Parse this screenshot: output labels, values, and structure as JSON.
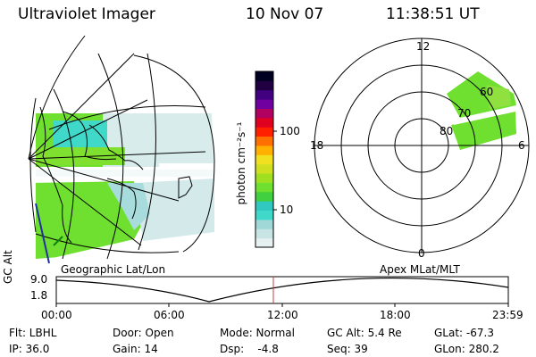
{
  "header": {
    "title": "Ultraviolet Imager",
    "date": "10 Nov 07",
    "time": "11:38:51 UT"
  },
  "colorbar": {
    "unit_label": "photon cm⁻²s⁻¹",
    "tick_100": "100",
    "tick_10": "10",
    "colors": [
      "#e6f2f2",
      "#c8e4e4",
      "#a0d8d8",
      "#40d8c8",
      "#30c8c0",
      "#40d040",
      "#70e030",
      "#a0e020",
      "#d0e020",
      "#f0e020",
      "#ffb000",
      "#ff7000",
      "#ff2000",
      "#e00020",
      "#b00060",
      "#7000a0",
      "#400080",
      "#200040",
      "#000020"
    ]
  },
  "polar": {
    "labels": {
      "top": "12",
      "left": "18",
      "right": "6",
      "bottom": "0"
    },
    "lat_labels": [
      "60",
      "70",
      "80"
    ]
  },
  "panel_labels": {
    "geo": "Geographic Lat/Lon",
    "apex": "Apex MLat/MLT"
  },
  "timeline": {
    "y_label": "GC Alt",
    "y_top": "9.0",
    "y_bottom": "1.8",
    "ticks": [
      "00:00",
      "06:00",
      "12:00",
      "18:00",
      "23:59"
    ]
  },
  "info": {
    "flt": "Flt: LBHL",
    "ip": "IP: 36.0",
    "door": "Door: Open",
    "gain": "Gain: 14",
    "mode": "Mode: Normal",
    "dsp": "Dsp:    -4.8",
    "gcalt": "GC Alt: 5.4 Re",
    "seq": "Seq: 39",
    "glat": "GLat: -67.3",
    "glon": "GLon: 280.2"
  }
}
